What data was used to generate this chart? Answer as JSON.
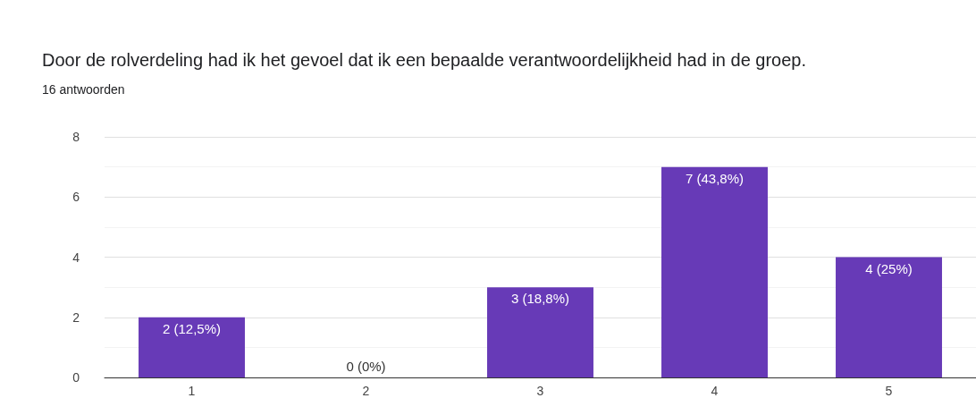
{
  "chart_data": {
    "type": "bar",
    "title": "Door de rolverdeling had ik het gevoel dat ik een bepaalde verantwoordelijkheid had in de groep.",
    "subtitle": "16 antwoorden",
    "categories": [
      "1",
      "2",
      "3",
      "4",
      "5"
    ],
    "values": [
      2,
      0,
      3,
      7,
      4
    ],
    "value_labels": [
      "2 (12,5%)",
      "0 (0%)",
      "3 (18,8%)",
      "7 (43,8%)",
      "4 (25%)"
    ],
    "color": "#673ab7",
    "ylim": [
      0,
      8
    ],
    "yticks": [
      0,
      2,
      4,
      6,
      8
    ],
    "grid": "y"
  }
}
